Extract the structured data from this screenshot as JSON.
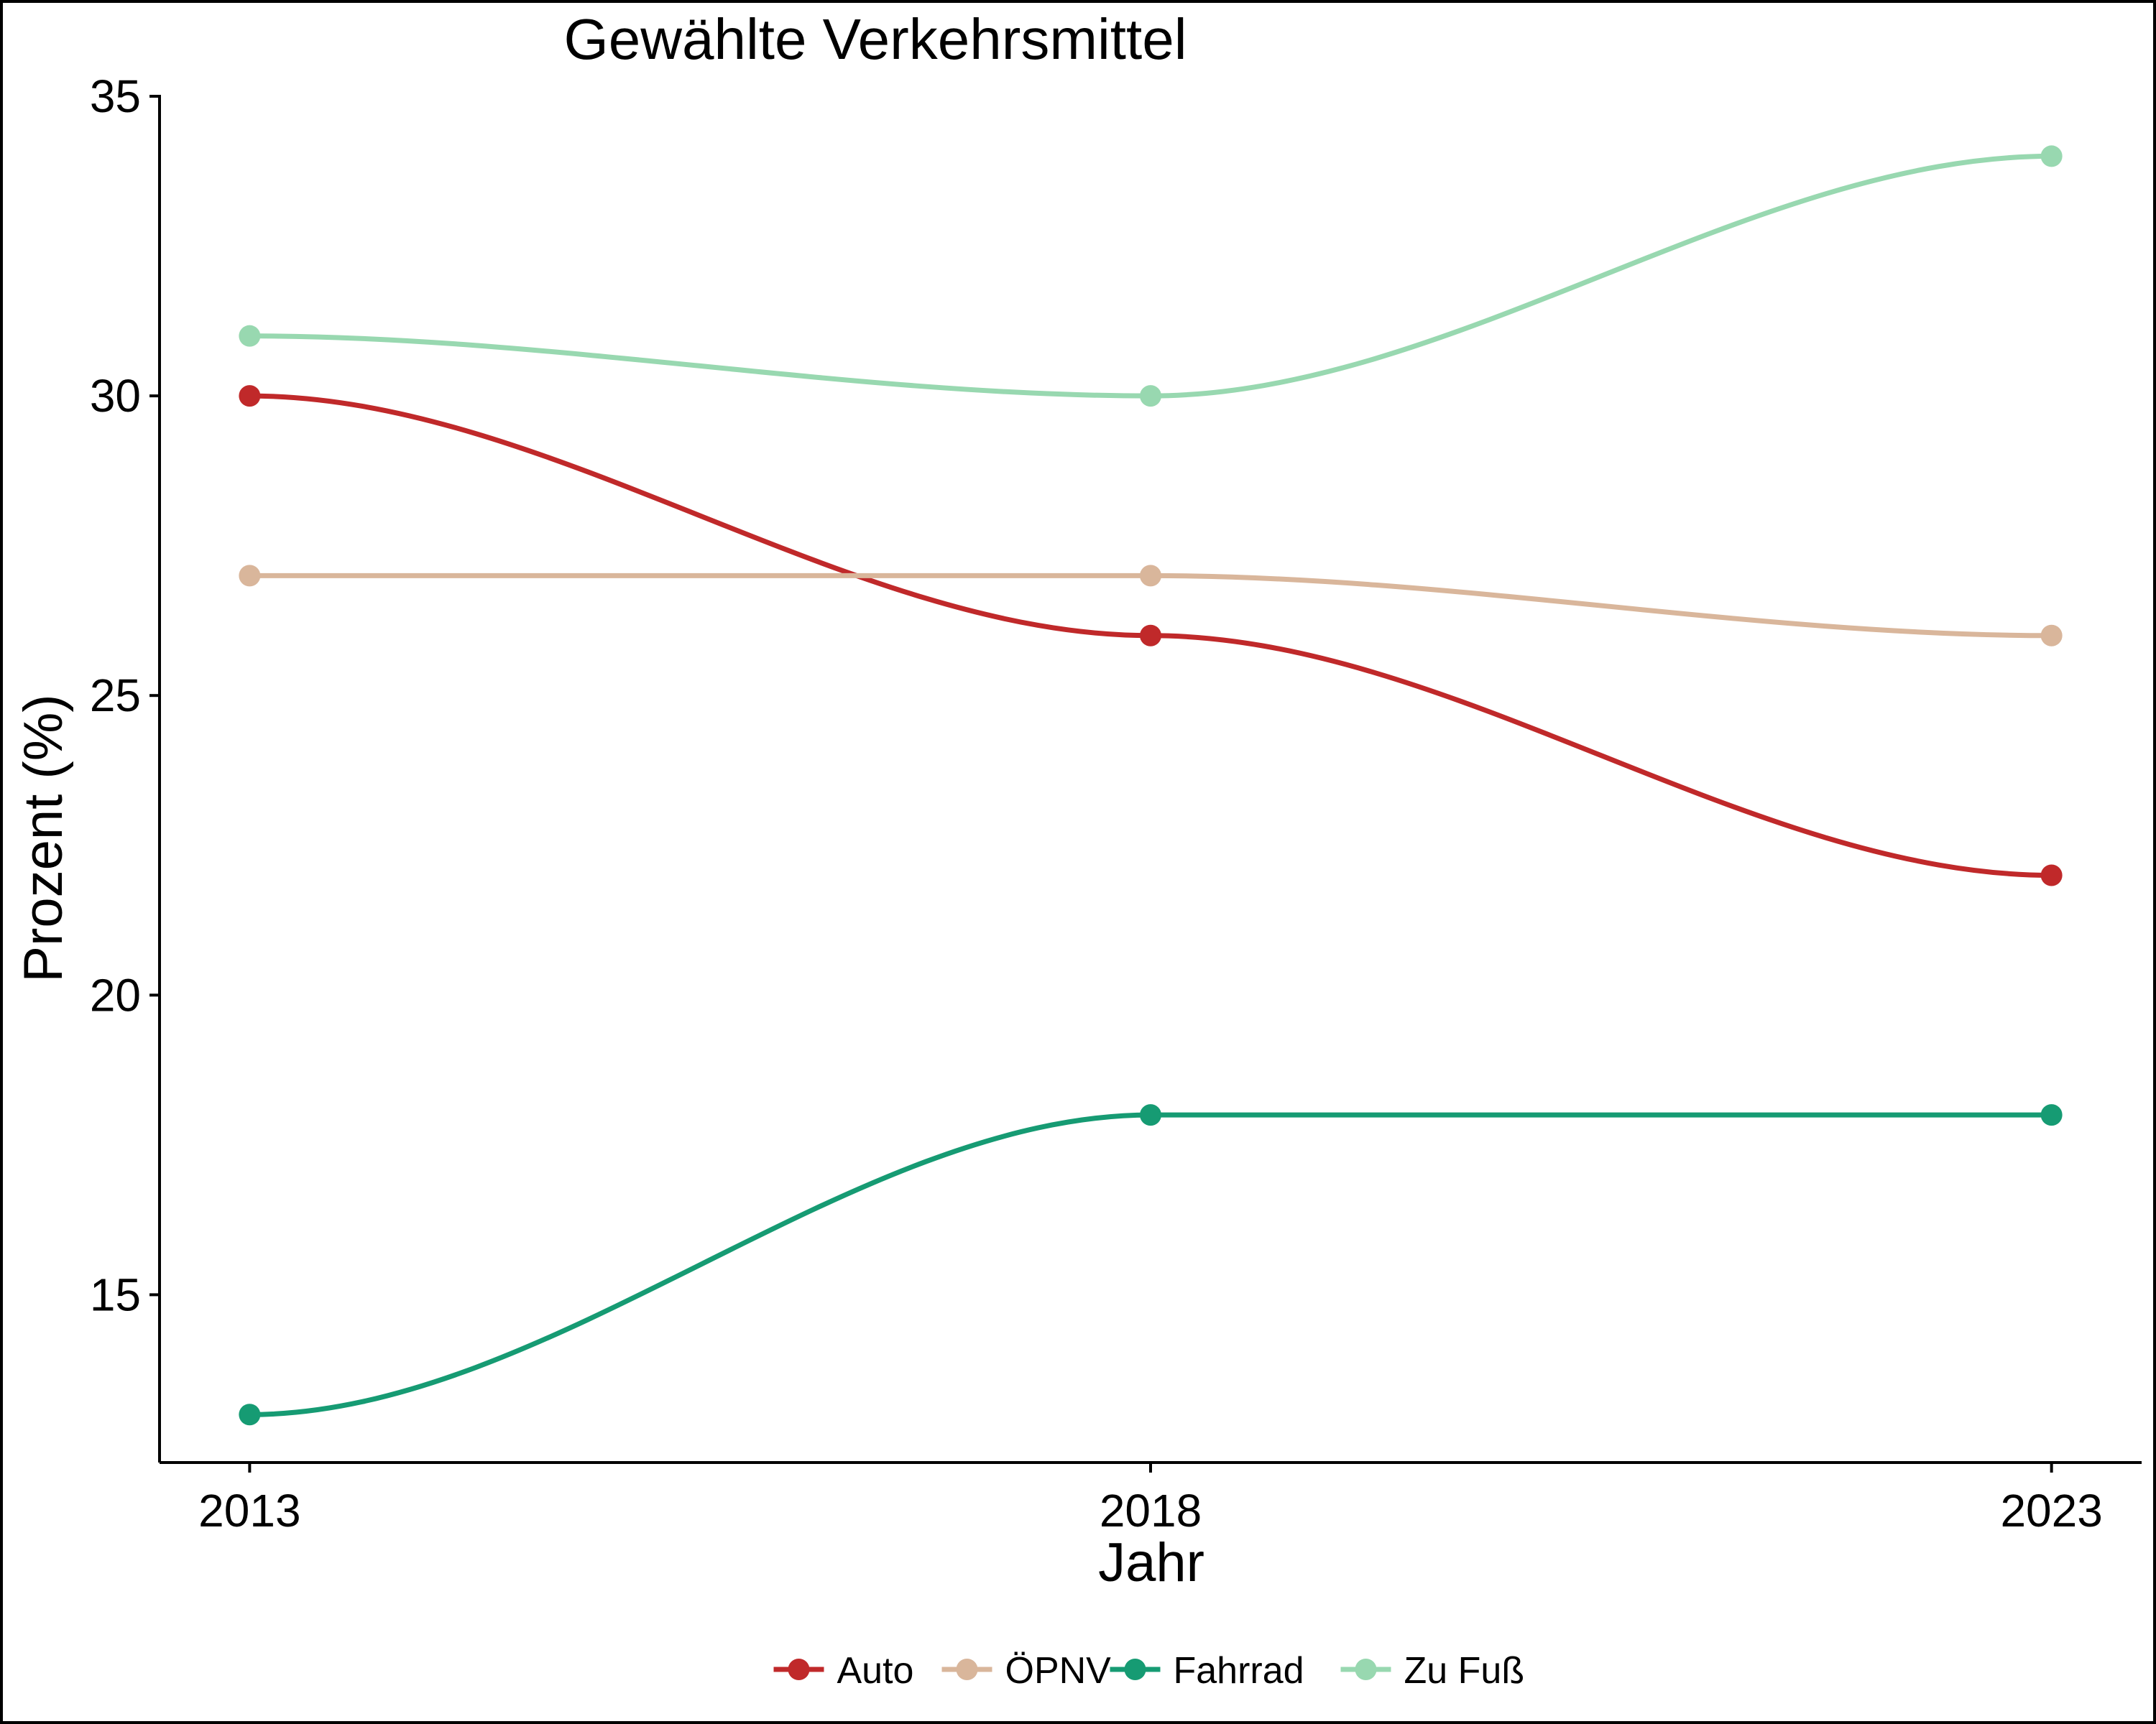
{
  "chart_data": {
    "type": "line",
    "title": "Gewählte Verkehrsmittel",
    "xlabel": "Jahr",
    "ylabel": "Prozent (%)",
    "x": [
      2013,
      2018,
      2023
    ],
    "x_tick_labels": [
      "2013",
      "2018",
      "2023"
    ],
    "y_ticks": [
      15,
      20,
      25,
      30,
      35
    ],
    "y_tick_labels": [
      "15",
      "20",
      "25",
      "30",
      "35"
    ],
    "ylim": [
      12.2,
      35
    ],
    "xlim": [
      2012.5,
      2023.5
    ],
    "grid": false,
    "smooth": true,
    "legend_position": "bottom",
    "series": [
      {
        "name": "Auto",
        "color": "#C0292A",
        "values": [
          30,
          26,
          22
        ]
      },
      {
        "name": "ÖPNV",
        "color": "#D9B69B",
        "values": [
          27,
          27,
          26
        ]
      },
      {
        "name": "Fahrrad",
        "color": "#169B73",
        "values": [
          13,
          18,
          18
        ]
      },
      {
        "name": "Zu Fuß",
        "color": "#98D8B0",
        "values": [
          31,
          30,
          34
        ]
      }
    ]
  }
}
